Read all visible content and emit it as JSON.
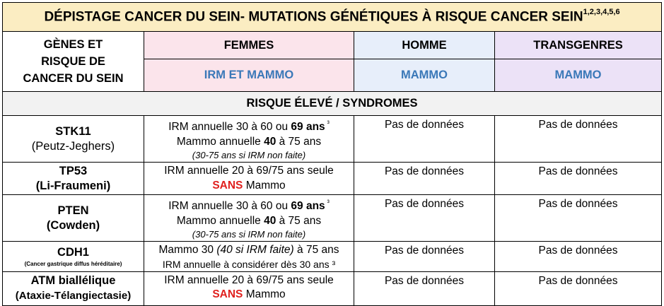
{
  "title": "DÉPISTAGE CANCER DU SEIN- MUTATIONS GÉNÉTIQUES À RISQUE CANCER SEIN",
  "title_refs": "1,2,3,4,5,6",
  "header": {
    "genes_line1": "GÈNES ET",
    "genes_line2": "RISQUE DE",
    "genes_line3": "CANCER DU SEIN",
    "col_femmes": "FEMMES",
    "col_homme": "HOMME",
    "col_transgenres": "TRANSGENRES",
    "sub_femmes": "IRM ET MAMMO",
    "sub_homme": "MAMMO",
    "sub_transgenres": "MAMMO"
  },
  "section_label": "RISQUE ÉLEVÉ / SYNDROMES",
  "colors": {
    "title_bg": "#fbedc2",
    "femmes_bg": "#fbe4eb",
    "homme_bg": "#e7eefa",
    "transgenres_bg": "#ece2f7",
    "section_bg": "#f2f2f2",
    "accent_blue": "#3a78b8",
    "accent_red": "#e0201e"
  },
  "rows": {
    "stk11": {
      "gene": "STK11",
      "syndrome": "(Peutz-Jeghers)",
      "f1a": "IRM annuelle 30 à 60 ou ",
      "f1b": "69 ans",
      "f1c": " ³",
      "f2a": "Mammo annuelle ",
      "f2b": "40",
      "f2c": " à 75 ans",
      "f3": "(30-75 ans si IRM non faite)",
      "homme": "Pas de données",
      "trans": "Pas de données"
    },
    "tp53": {
      "gene": "TP53",
      "syndrome": "(Li-Fraumeni)",
      "f1": "IRM annuelle 20 à 69/75 ans seule",
      "f2a": "SANS",
      "f2b": " Mammo",
      "homme": "Pas de données",
      "trans": "Pas de données"
    },
    "pten": {
      "gene": "PTEN",
      "syndrome": "(Cowden)",
      "f1a": "IRM annuelle 30 à 60 ou ",
      "f1b": "69 ans",
      "f1c": " ³",
      "f2a": "Mammo annuelle ",
      "f2b": "40",
      "f2c": " à 75 ans",
      "f3": "(30-75 ans si IRM non faite)",
      "homme": "Pas de données",
      "trans": "Pas de données"
    },
    "cdh1": {
      "gene": "CDH1",
      "syndrome": "(Cancer gastrique diffus héréditaire)",
      "f1a": "Mammo 30 ",
      "f1b": "(40 si IRM faite)",
      "f1c": " à 75 ans",
      "f2": "IRM annuelle à considérer dès 30 ans ³",
      "homme": "Pas de données",
      "trans": "Pas de données"
    },
    "atm": {
      "gene": "ATM biallélique",
      "syndrome": "(Ataxie-Télangiectasie)",
      "f1": "IRM annuelle 20 à 69/75 ans seule",
      "f2a": "SANS",
      "f2b": " Mammo",
      "homme": "Pas de données",
      "trans": "Pas de données"
    }
  }
}
